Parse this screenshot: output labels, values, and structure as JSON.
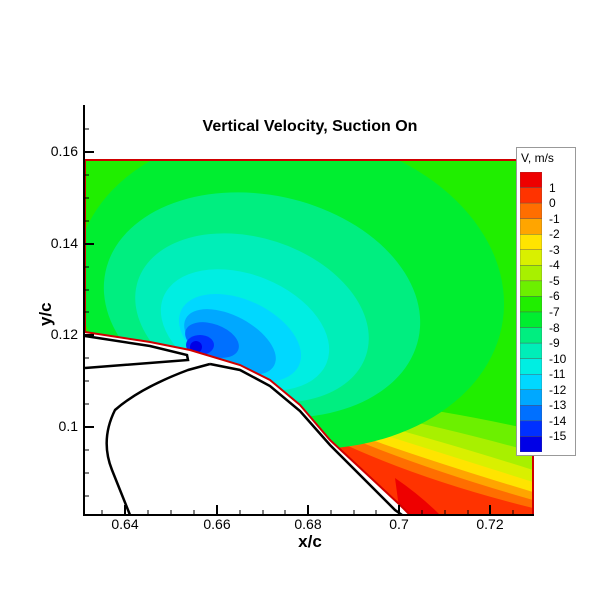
{
  "chart_data": {
    "type": "heatmap",
    "subtype": "filled-contour",
    "title": "Vertical Velocity, Suction On",
    "xlabel": "x/c",
    "ylabel": "y/c",
    "xlim": [
      0.631,
      0.7293
    ],
    "ylim": [
      0.0821,
      0.1705
    ],
    "x_ticks": [
      "0.64",
      "0.66",
      "0.68",
      "0.7",
      "0.72"
    ],
    "y_ticks": [
      "0.16",
      "0.14",
      "0.12",
      "0.1"
    ],
    "colorbar": {
      "title": "V, m/s",
      "levels": [
        "1",
        "0",
        "-1",
        "-2",
        "-3",
        "-4",
        "-5",
        "-6",
        "-7",
        "-8",
        "-9",
        "-10",
        "-11",
        "-12",
        "-13",
        "-14",
        "-15"
      ],
      "colors": [
        "#ee0000",
        "#ff3300",
        "#ff6e00",
        "#ffa500",
        "#ffe400",
        "#d9f000",
        "#a8f000",
        "#6cf000",
        "#20ee00",
        "#00ee30",
        "#00ee80",
        "#00eeb8",
        "#00eee2",
        "#00d8ff",
        "#00a8ff",
        "#0070ff",
        "#0030ff",
        "#0000e6"
      ]
    },
    "features": {
      "min_region": {
        "x": 0.656,
        "y": 0.117,
        "value": "<-15"
      },
      "max_region": {
        "x": 0.71,
        "y": 0.083,
        "value": ">1"
      },
      "background_value": "-7 to -8",
      "domain_top_y": 0.158
    },
    "grid": false,
    "legend_position": "right"
  }
}
